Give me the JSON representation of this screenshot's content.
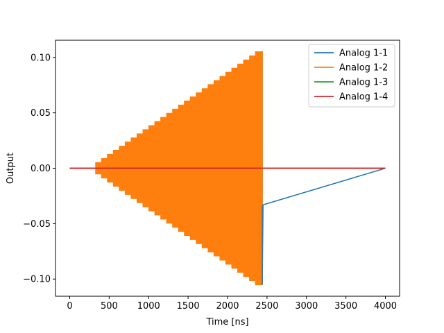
{
  "chart_data": {
    "type": "line",
    "title": "",
    "xlabel": "Time [ns]",
    "ylabel": "Output",
    "xlim": [
      -180,
      4180
    ],
    "ylim": [
      -0.1155,
      0.1155
    ],
    "xticks": [
      0,
      500,
      1000,
      1500,
      2000,
      2500,
      3000,
      3500,
      4000
    ],
    "xtick_labels": [
      "0",
      "500",
      "1000",
      "1500",
      "2000",
      "2500",
      "3000",
      "3500",
      "4000"
    ],
    "yticks": [
      -0.1,
      -0.05,
      0.0,
      0.05,
      0.1
    ],
    "ytick_labels": [
      "−0.10",
      "−0.05",
      "0.00",
      "0.05",
      "0.10"
    ],
    "grid": false,
    "legend_position": "top-right",
    "series": [
      {
        "name": "Analog 1-1",
        "color": "#1f77b4",
        "description_points": {
          "x": [
            0,
            330,
            2440,
            2440,
            2450,
            4000
          ],
          "y": [
            0,
            0,
            0.105,
            -0.105,
            -0.033,
            0
          ]
        }
      },
      {
        "name": "Analog 1-2",
        "color": "#ff7f0e",
        "envelope": {
          "x_start": 330,
          "x_end": 2440,
          "step_width": 75,
          "step_amplitude": 0.005,
          "first_amplitude": 0.005,
          "last_amplitude": 0.105
        }
      },
      {
        "name": "Analog 1-3",
        "color": "#2ca02c",
        "constant": 0,
        "x_range": [
          0,
          4000
        ]
      },
      {
        "name": "Analog 1-4",
        "color": "#d62728",
        "constant": 0,
        "x_range": [
          0,
          4000
        ]
      }
    ]
  }
}
